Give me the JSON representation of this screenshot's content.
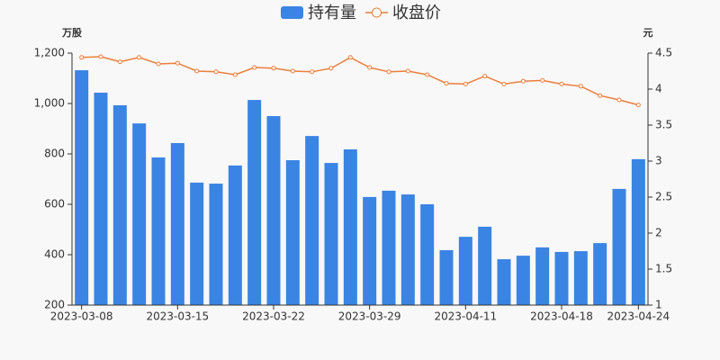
{
  "chart_data": {
    "type": "bar",
    "legend": "top",
    "categories": [
      "2023-03-08",
      null,
      null,
      null,
      null,
      "2023-03-15",
      null,
      null,
      null,
      null,
      "2023-03-22",
      null,
      null,
      null,
      null,
      "2023-03-29",
      null,
      null,
      null,
      null,
      "2023-04-11",
      null,
      null,
      null,
      null,
      "2023-04-18",
      null,
      null,
      null,
      "2023-04-24"
    ],
    "y_label": "万股",
    "y2_label": "元",
    "ylim": [
      200,
      1200
    ],
    "yticks": [
      200,
      400,
      600,
      800,
      {
        "value": 1000,
        "label": "1,000"
      },
      {
        "value": 1200,
        "label": "1,200"
      }
    ],
    "y2lim": [
      1,
      4.5
    ],
    "y2ticks": [
      1,
      1.5,
      2,
      2.5,
      3,
      3.5,
      4,
      4.5
    ],
    "series": [
      {
        "name": "持有量",
        "type": "bar",
        "color": "#3a84e3",
        "values": [
          1132,
          1043,
          993,
          921,
          786,
          843,
          686,
          682,
          754,
          1014,
          950,
          775,
          871,
          764,
          818,
          629,
          654,
          639,
          600,
          418,
          471,
          511,
          382,
          396,
          429,
          411,
          414,
          446,
          661,
          779
        ]
      },
      {
        "name": "收盘价",
        "type": "line",
        "axis": "y2",
        "color": "#eb7e3a",
        "values": [
          4.44,
          4.45,
          4.38,
          4.44,
          4.35,
          4.36,
          4.25,
          4.24,
          4.2,
          4.3,
          4.29,
          4.25,
          4.24,
          4.29,
          4.44,
          4.3,
          4.24,
          4.25,
          4.2,
          4.08,
          4.07,
          4.18,
          4.07,
          4.11,
          4.12,
          4.07,
          4.04,
          3.91,
          3.85,
          3.78
        ]
      }
    ]
  }
}
